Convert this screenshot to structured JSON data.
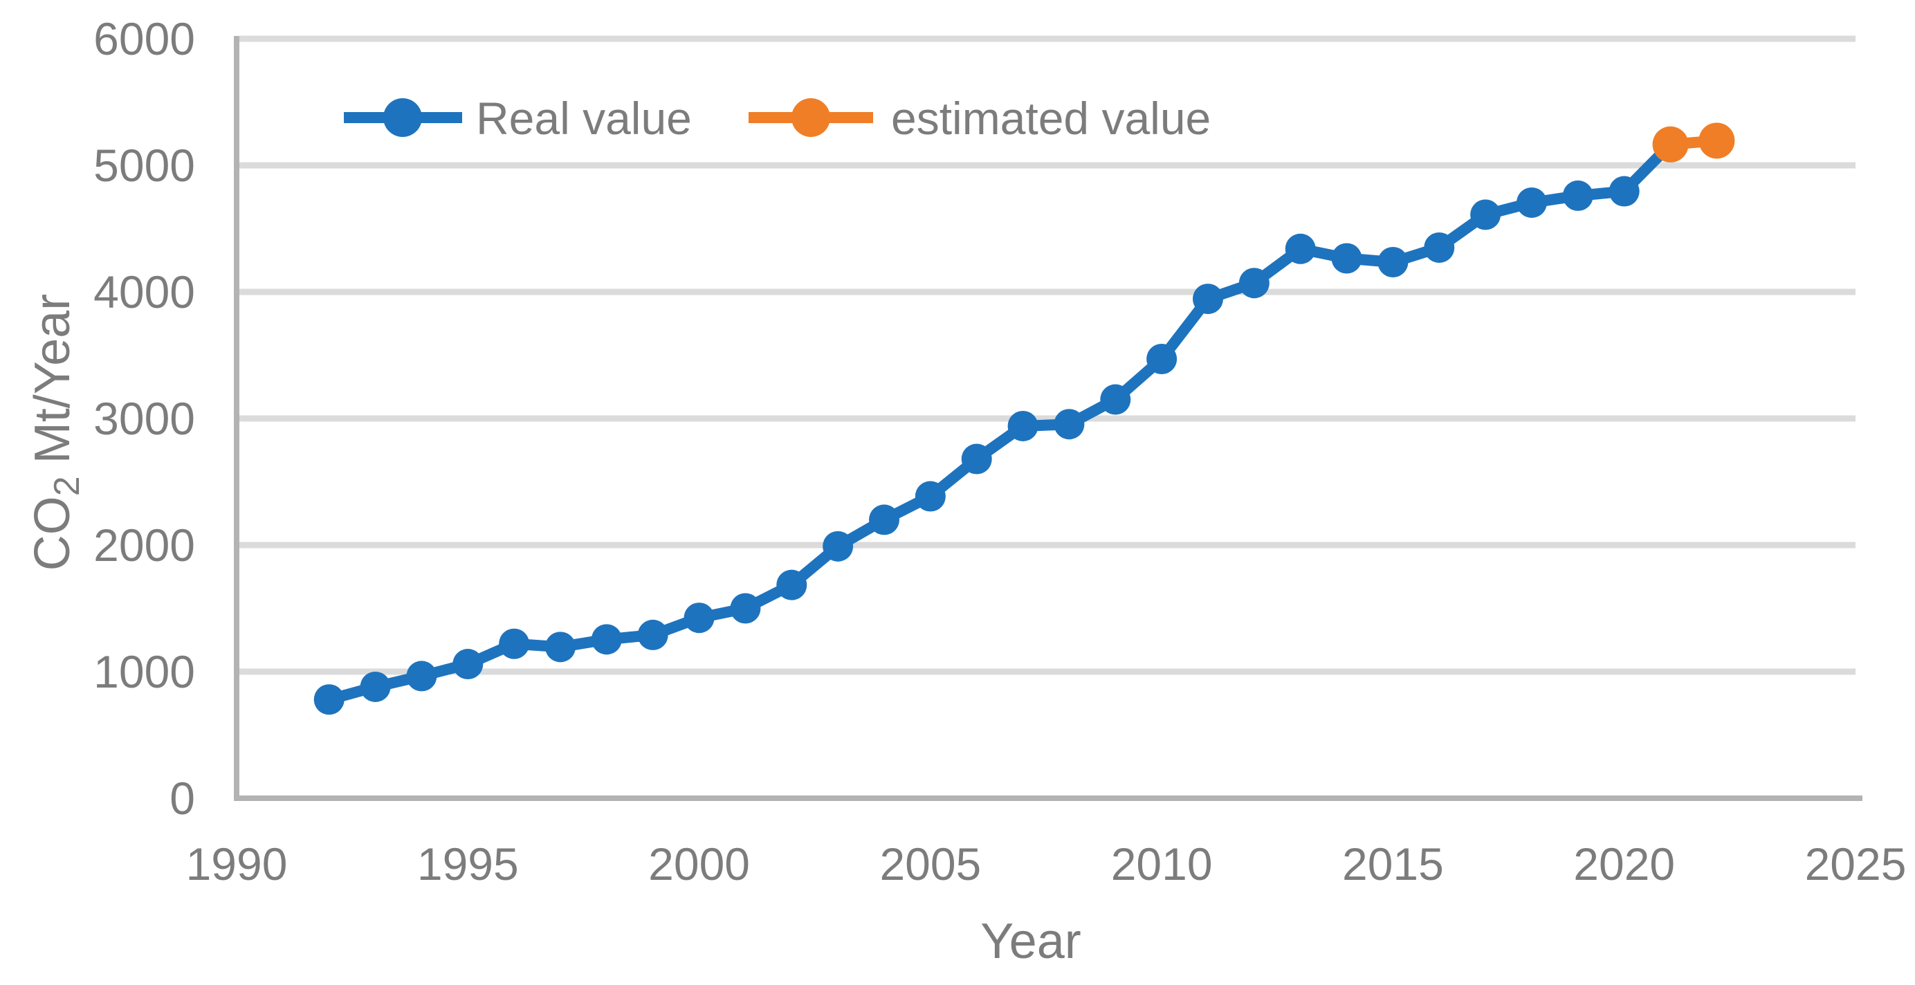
{
  "chart_data": {
    "type": "line",
    "title": "",
    "xlabel": "Year",
    "ylabel": {
      "text": "CO2 Mt/Year",
      "prefix": "CO",
      "subscript": "2",
      "suffix": "Mt/Year"
    },
    "xlim": [
      1990,
      2025
    ],
    "ylim": [
      0,
      6000
    ],
    "x_ticks": [
      1990,
      1995,
      2000,
      2005,
      2010,
      2015,
      2020,
      2025
    ],
    "y_ticks": [
      0,
      1000,
      2000,
      3000,
      4000,
      5000,
      6000
    ],
    "grid": "horizontal",
    "legend_position": "top-inside",
    "series": [
      {
        "name": "Real value",
        "color": "#1E73BE",
        "x": [
          1992,
          1993,
          1994,
          1995,
          1996,
          1997,
          1998,
          1999,
          2000,
          2001,
          2002,
          2003,
          2004,
          2005,
          2006,
          2007,
          2008,
          2009,
          2010,
          2011,
          2012,
          2013,
          2014,
          2015,
          2016,
          2017,
          2018,
          2019,
          2020,
          2021
        ],
        "values": [
          780,
          880,
          965,
          1060,
          1220,
          1195,
          1255,
          1290,
          1425,
          1500,
          1685,
          1990,
          2200,
          2385,
          2680,
          2940,
          2955,
          3150,
          3470,
          3945,
          4070,
          4340,
          4265,
          4235,
          4350,
          4610,
          4705,
          4760,
          4795,
          5165
        ]
      },
      {
        "name": "estimated value",
        "color": "#F07E26",
        "x": [
          2021,
          2022
        ],
        "values": [
          5165,
          5195
        ]
      }
    ]
  },
  "colors": {
    "background": "#ffffff",
    "gridline": "#dbdbdb",
    "axis_line": "#b3b3b3",
    "label_text": "#7c7c7c",
    "real_series": "#1E73BE",
    "estimated_series": "#F07E26"
  }
}
